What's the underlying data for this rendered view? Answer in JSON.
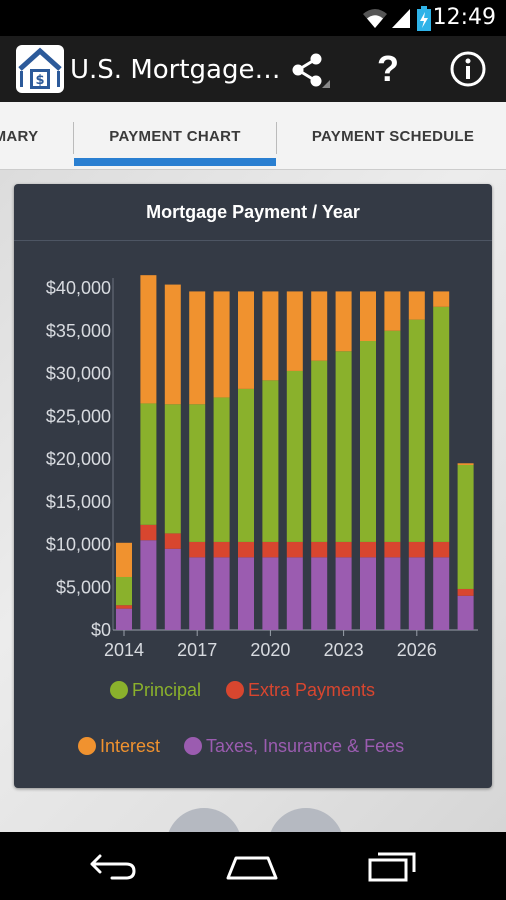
{
  "status_bar": {
    "time": "12:49",
    "icons": [
      "wifi-icon",
      "signal-icon",
      "battery-charging-icon"
    ]
  },
  "action_bar": {
    "title": "U.S. Mortgage…",
    "app_icon": "house-dollar-icon",
    "actions": [
      "share-icon",
      "help-icon",
      "info-icon"
    ],
    "help_label": "?"
  },
  "tabs": [
    {
      "label": "MARY"
    },
    {
      "label": "PAYMENT CHART",
      "selected": true
    },
    {
      "label": "PAYMENT SCHEDULE"
    }
  ],
  "colors": {
    "accent": "#2a7fd1",
    "principal": "#8ab12c",
    "extra_payments": "#d8462f",
    "interest": "#f0922f",
    "taxes": "#9b5cb0"
  },
  "chart_data": {
    "type": "bar",
    "stacked": true,
    "title": "Mortgage Payment / Year",
    "x": [
      2014,
      2015,
      2016,
      2017,
      2018,
      2019,
      2020,
      2021,
      2022,
      2023,
      2024,
      2025,
      2026,
      2027,
      2028
    ],
    "x_tick_labels": [
      "2014",
      "2017",
      "2020",
      "2023",
      "2026"
    ],
    "y_tick_labels": [
      "$0",
      "$5,000",
      "$10,000",
      "$15,000",
      "$20,000",
      "$25,000",
      "$30,000",
      "$35,000",
      "$40,000"
    ],
    "ylim": [
      0,
      40000
    ],
    "legend_position": "bottom",
    "series": [
      {
        "name": "Taxes, Insurance & Fees",
        "values": [
          2500,
          10500,
          9500,
          8500,
          8500,
          8500,
          8500,
          8500,
          8500,
          8500,
          8500,
          8500,
          8500,
          8500,
          4000
        ]
      },
      {
        "name": "Extra Payments",
        "values": [
          400,
          1800,
          1800,
          1800,
          1800,
          1800,
          1800,
          1800,
          1800,
          1800,
          1800,
          1800,
          1800,
          1800,
          800
        ]
      },
      {
        "name": "Principal",
        "values": [
          3300,
          14200,
          15100,
          16100,
          16900,
          17900,
          18900,
          20000,
          21200,
          22300,
          23500,
          24700,
          26000,
          27500,
          14500
        ]
      },
      {
        "name": "Interest",
        "values": [
          4000,
          15000,
          14000,
          13200,
          12400,
          11400,
          10400,
          9300,
          8100,
          7000,
          5800,
          4600,
          3300,
          1800,
          200
        ]
      }
    ]
  },
  "legend": [
    {
      "name": "Principal",
      "color": "#8ab12c"
    },
    {
      "name": "Extra Payments",
      "color": "#d8462f"
    },
    {
      "name": "Interest",
      "color": "#f0922f"
    },
    {
      "name": "Taxes, Insurance & Fees",
      "color": "#9b5cb0"
    }
  ],
  "nav_bar": {
    "buttons": [
      "back-icon",
      "home-icon",
      "recent-apps-icon"
    ]
  }
}
